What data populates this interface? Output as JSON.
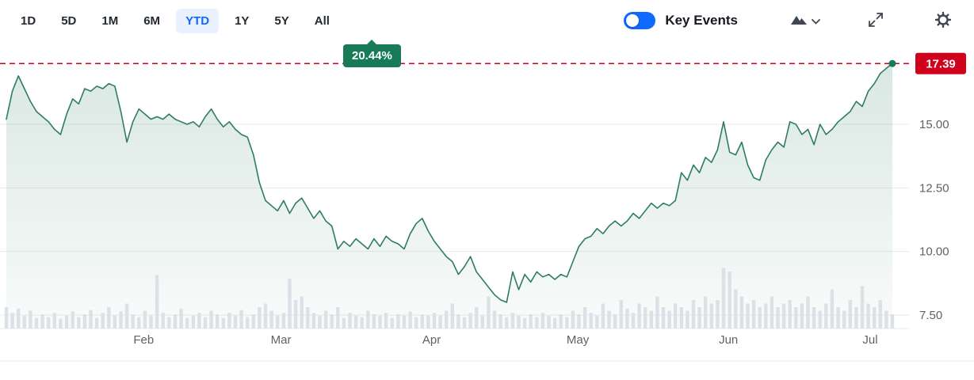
{
  "toolbar": {
    "ranges": [
      {
        "label": "1D",
        "selected": false
      },
      {
        "label": "5D",
        "selected": false
      },
      {
        "label": "1M",
        "selected": false
      },
      {
        "label": "6M",
        "selected": false
      },
      {
        "label": "YTD",
        "selected": true
      },
      {
        "label": "1Y",
        "selected": false
      },
      {
        "label": "5Y",
        "selected": false
      },
      {
        "label": "All",
        "selected": false
      }
    ],
    "performance_badge": "20.44%",
    "key_events_label": "Key Events",
    "key_events_on": true
  },
  "colors": {
    "accent_blue": "#0f69ff",
    "line_green": "#2e7d61",
    "area_fill_rgb": "46,125,97",
    "badge_green": "#177b57",
    "price_red": "#d0021b",
    "grid": "#e8eaee",
    "volume_bar": "#dce1e7",
    "axis_text": "#5b636a",
    "icon_gray": "#3f4651"
  },
  "chart_data": {
    "type": "area",
    "title": "YTD price chart with volume",
    "legend": [],
    "grid": true,
    "current_price": 17.39,
    "current_price_label": "17.39",
    "y_axis": {
      "ticks": [
        15.0,
        12.5,
        10.0,
        7.5
      ],
      "tick_labels": [
        "15.00",
        "12.50",
        "10.00",
        "7.50"
      ],
      "range": [
        6.9,
        17.9
      ]
    },
    "x_axis": {
      "labels": [
        "Feb",
        "Mar",
        "Apr",
        "May",
        "Jun",
        "Jul"
      ],
      "positions": [
        0.155,
        0.31,
        0.48,
        0.645,
        0.815,
        0.975
      ]
    },
    "prices": [
      15.2,
      16.3,
      16.9,
      16.4,
      15.9,
      15.5,
      15.3,
      15.1,
      14.8,
      14.6,
      15.4,
      16.0,
      15.8,
      16.4,
      16.3,
      16.5,
      16.4,
      16.6,
      16.5,
      15.5,
      14.3,
      15.1,
      15.6,
      15.4,
      15.2,
      15.3,
      15.2,
      15.4,
      15.2,
      15.1,
      15.0,
      15.1,
      14.9,
      15.3,
      15.6,
      15.2,
      14.9,
      15.1,
      14.8,
      14.6,
      14.5,
      13.8,
      12.7,
      12.0,
      11.8,
      11.6,
      12.0,
      11.5,
      11.9,
      12.1,
      11.7,
      11.3,
      11.6,
      11.2,
      11.0,
      10.1,
      10.4,
      10.2,
      10.5,
      10.3,
      10.1,
      10.5,
      10.2,
      10.6,
      10.4,
      10.3,
      10.1,
      10.7,
      11.1,
      11.3,
      10.8,
      10.4,
      10.1,
      9.8,
      9.6,
      9.1,
      9.4,
      9.8,
      9.2,
      8.9,
      8.6,
      8.3,
      8.1,
      8.0,
      9.2,
      8.5,
      9.1,
      8.8,
      9.2,
      9.0,
      9.1,
      8.9,
      9.1,
      9.0,
      9.6,
      10.2,
      10.5,
      10.6,
      10.9,
      10.7,
      11.0,
      11.2,
      11.0,
      11.2,
      11.5,
      11.3,
      11.6,
      11.9,
      11.7,
      11.9,
      11.8,
      12.0,
      13.1,
      12.8,
      13.4,
      13.1,
      13.7,
      13.5,
      14.0,
      15.1,
      13.9,
      13.8,
      14.3,
      13.4,
      12.9,
      12.8,
      13.6,
      14.0,
      14.3,
      14.1,
      15.1,
      15.0,
      14.6,
      14.8,
      14.2,
      15.0,
      14.6,
      14.8,
      15.1,
      15.3,
      15.5,
      15.9,
      15.7,
      16.3,
      16.6,
      17.0,
      17.2,
      17.39
    ],
    "volume": [
      0.3,
      0.22,
      0.28,
      0.18,
      0.25,
      0.15,
      0.2,
      0.16,
      0.22,
      0.14,
      0.18,
      0.24,
      0.16,
      0.2,
      0.26,
      0.15,
      0.22,
      0.3,
      0.18,
      0.24,
      0.35,
      0.2,
      0.16,
      0.25,
      0.18,
      0.75,
      0.22,
      0.16,
      0.2,
      0.28,
      0.15,
      0.18,
      0.22,
      0.16,
      0.25,
      0.2,
      0.15,
      0.22,
      0.18,
      0.26,
      0.16,
      0.2,
      0.3,
      0.35,
      0.25,
      0.18,
      0.22,
      0.7,
      0.4,
      0.45,
      0.3,
      0.22,
      0.18,
      0.25,
      0.2,
      0.3,
      0.15,
      0.22,
      0.18,
      0.16,
      0.25,
      0.2,
      0.18,
      0.22,
      0.15,
      0.2,
      0.18,
      0.24,
      0.16,
      0.2,
      0.18,
      0.22,
      0.18,
      0.25,
      0.35,
      0.2,
      0.16,
      0.22,
      0.3,
      0.18,
      0.45,
      0.25,
      0.2,
      0.16,
      0.22,
      0.18,
      0.15,
      0.2,
      0.16,
      0.22,
      0.18,
      0.15,
      0.2,
      0.16,
      0.25,
      0.2,
      0.3,
      0.22,
      0.18,
      0.35,
      0.25,
      0.2,
      0.4,
      0.28,
      0.22,
      0.35,
      0.3,
      0.25,
      0.45,
      0.3,
      0.25,
      0.35,
      0.3,
      0.25,
      0.4,
      0.3,
      0.45,
      0.35,
      0.4,
      0.85,
      0.8,
      0.55,
      0.45,
      0.35,
      0.4,
      0.3,
      0.35,
      0.45,
      0.3,
      0.35,
      0.4,
      0.3,
      0.35,
      0.45,
      0.3,
      0.25,
      0.35,
      0.55,
      0.3,
      0.25,
      0.4,
      0.3,
      0.6,
      0.35,
      0.3,
      0.4,
      0.25,
      0.2
    ]
  }
}
